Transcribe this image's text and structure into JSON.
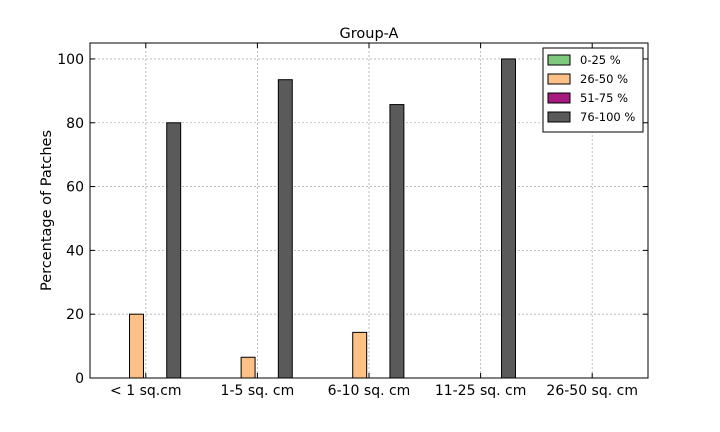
{
  "chart_data": {
    "type": "bar",
    "title": "Group-A",
    "xlabel": "",
    "ylabel": "Percentage of Patches",
    "categories": [
      "< 1 sq.cm",
      "1-5 sq. cm",
      "6-10 sq. cm",
      "11-25 sq. cm",
      "26-50 sq. cm"
    ],
    "yticks": [
      "0",
      "20",
      "40",
      "60",
      "80",
      "100"
    ],
    "ylim": [
      0,
      105
    ],
    "grid": true,
    "legend_position": "top-right",
    "series": [
      {
        "name": "0-25 %",
        "color": "#7fc97f",
        "values": [
          0,
          0,
          0,
          0,
          0
        ]
      },
      {
        "name": "26-50 %",
        "color": "#fdc086",
        "values": [
          20,
          6.5,
          14.3,
          0,
          0
        ]
      },
      {
        "name": "51-75 %",
        "color": "#a6197f",
        "values": [
          0,
          0,
          0,
          0,
          0
        ]
      },
      {
        "name": "76-100 %",
        "color": "#5a5a5a",
        "values": [
          80,
          93.5,
          85.7,
          100,
          0
        ]
      }
    ]
  }
}
